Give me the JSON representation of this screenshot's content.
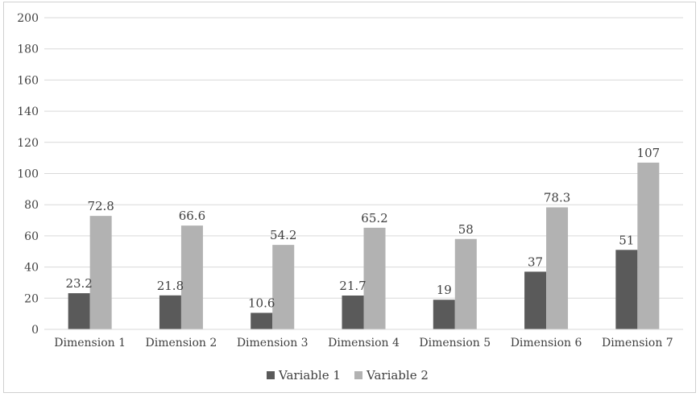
{
  "chart_data": {
    "type": "bar",
    "categories": [
      "Dimension 1",
      "Dimension 2",
      "Dimension 3",
      "Dimension 4",
      "Dimension 5",
      "Dimension 6",
      "Dimension 7"
    ],
    "series": [
      {
        "name": "Variable 1",
        "values": [
          23.2,
          21.8,
          10.6,
          21.7,
          19,
          37,
          51
        ],
        "labels": [
          "23.2",
          "21.8",
          "10.6",
          "21.7",
          "19",
          "37",
          "51"
        ],
        "color": "#5a5a5a"
      },
      {
        "name": "Variable 2",
        "values": [
          72.8,
          66.6,
          54.2,
          65.2,
          58,
          78.3,
          107
        ],
        "labels": [
          "72.8",
          "66.6",
          "54.2",
          "65.2",
          "58",
          "78.3",
          "107"
        ],
        "color": "#b2b2b2"
      }
    ],
    "ylim": [
      0,
      200
    ],
    "yticks": [
      "0",
      "20",
      "40",
      "60",
      "80",
      "100",
      "120",
      "140",
      "160",
      "180",
      "200"
    ],
    "grid": true,
    "legend_position": "bottom"
  }
}
